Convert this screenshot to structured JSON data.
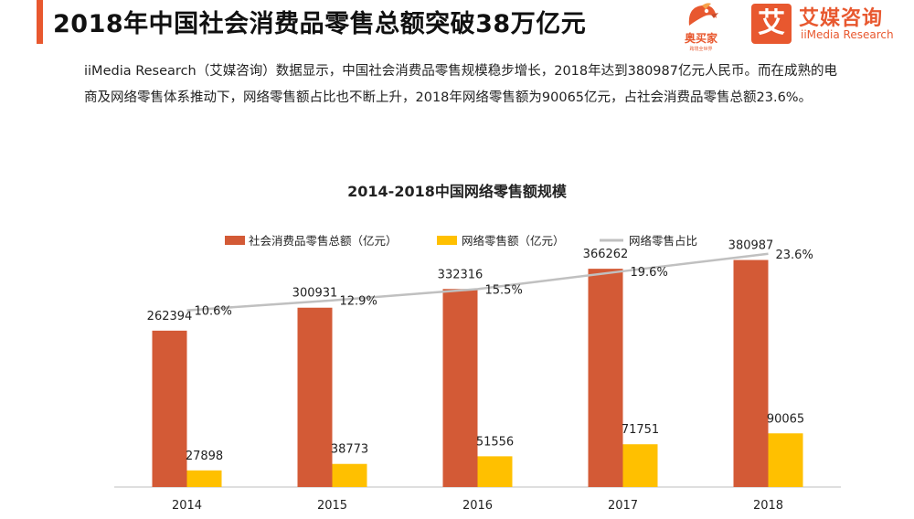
{
  "header": {
    "title": "2018年中国社会消费品零售总额突破38万亿元"
  },
  "logos": {
    "aomaijia_name": "奥买家",
    "aomaijia_tagline": "跨境全世界",
    "iimedia_icon_char": "艾",
    "iimedia_cn": "艾媒咨询",
    "iimedia_en": "iiMedia Research"
  },
  "intro": {
    "text": "iiMedia Research（艾媒咨询）数据显示，中国社会消费品零售规模稳步增长，2018年达到380987亿元人民币。而在成熟的电商及网络零售体系推动下，网络零售额占比也不断上升，2018年网络零售额为90065亿元，占社会消费品零售总额23.6%。"
  },
  "colors": {
    "accent": "#e8582f",
    "series_total": "#d35a36",
    "series_online": "#ffc000",
    "series_share": "#c0c0c0"
  },
  "chart_data": {
    "type": "bar",
    "title": "2014-2018中国网络零售额规模",
    "categories": [
      "2014",
      "2015",
      "2016",
      "2017",
      "2018"
    ],
    "series": [
      {
        "name": "社会消费品零售总额（亿元）",
        "kind": "bar",
        "values": [
          262394,
          300931,
          332316,
          366262,
          380987
        ]
      },
      {
        "name": "网络零售额（亿元）",
        "kind": "bar",
        "values": [
          27898,
          38773,
          51556,
          71751,
          90065
        ]
      },
      {
        "name": "网络零售占比",
        "kind": "line",
        "values": [
          10.6,
          12.9,
          15.5,
          19.6,
          23.6
        ],
        "labels": [
          "10.6%",
          "12.9%",
          "15.5%",
          "19.6%",
          "23.6%"
        ]
      }
    ],
    "ylim": [
      0,
      460000
    ],
    "y2lim": [
      -30,
      33
    ],
    "legend_position": "top",
    "grid": false
  }
}
